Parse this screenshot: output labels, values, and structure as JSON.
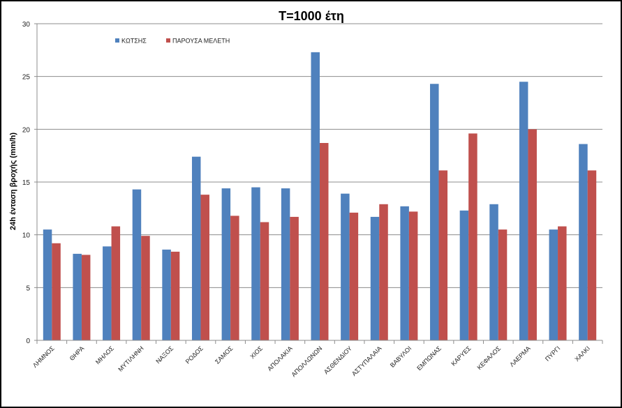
{
  "chart_data": {
    "type": "bar",
    "title": "T=1000 έτη",
    "xlabel": "",
    "ylabel": "24h ένταση βροχής (mm/h)",
    "ylim": [
      0,
      30
    ],
    "yticks": [
      0,
      5,
      10,
      15,
      20,
      25,
      30
    ],
    "grid": true,
    "legend_position": "top-left",
    "categories": [
      "ΛΗΜΝΟΣ",
      "ΘΗΡΑ",
      "ΜΗΛΟΣ",
      "ΜΥΤΙΛΗΝΗ",
      "ΝΑΞΟΣ",
      "ΡΟΔΟΣ",
      "ΣΑΜΟΣ",
      "ΧΙΟΣ",
      "ΑΠΟΛΑΚΙΑ",
      "ΑΠΟΛΛΩΝΩΝ",
      "ΑΣΘΕΝΔΙΟΥ",
      "ΑΣΤΥΠΑΛΑΙΑ",
      "ΒΑΒΥΛΟΙ",
      "ΕΜΠΩΝΑΣ",
      "ΚΑΡΥΕΣ",
      "ΚΕΦΑΛΟΣ",
      "ΛΑΕΡΜΑ",
      "ΠΥΡΓΙ",
      "ΧΑΛΚΙ"
    ],
    "series": [
      {
        "name": "ΚΩΤΣΗΣ",
        "color": "#4F81BD",
        "values": [
          10.5,
          8.2,
          8.9,
          14.3,
          8.6,
          17.4,
          14.4,
          14.5,
          14.4,
          27.3,
          13.9,
          11.7,
          12.7,
          24.3,
          12.3,
          12.9,
          24.5,
          10.5,
          18.6
        ]
      },
      {
        "name": "ΠΑΡΟΥΣΑ ΜΕΛΕΤΗ",
        "color": "#C0504D",
        "values": [
          9.2,
          8.1,
          10.8,
          9.9,
          8.4,
          13.8,
          11.8,
          11.2,
          11.7,
          18.7,
          12.1,
          12.9,
          12.2,
          16.1,
          19.6,
          10.5,
          20.0,
          10.8,
          16.1
        ]
      }
    ]
  }
}
